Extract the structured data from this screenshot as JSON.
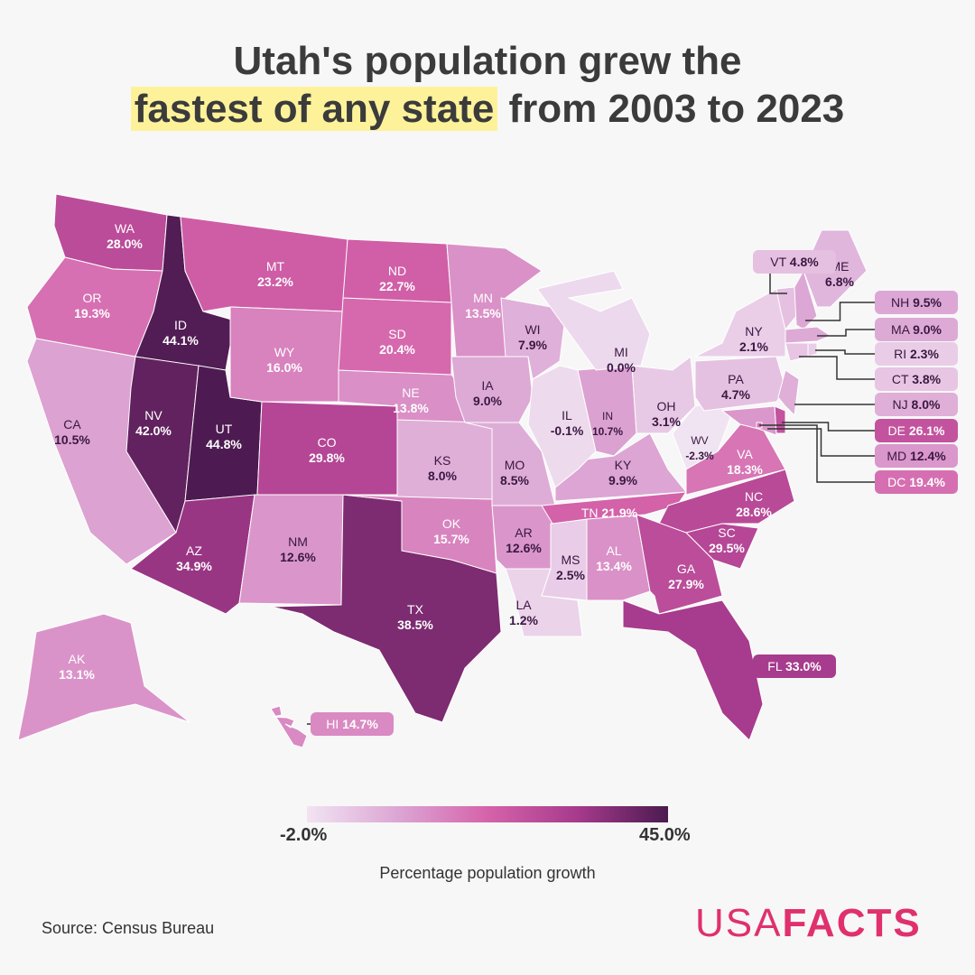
{
  "title": {
    "line1": "Utah's population grew the",
    "line2_highlight": "fastest of any state",
    "line2_rest": "from 2003 to 2023"
  },
  "legend": {
    "min_label": "-2.0%",
    "max_label": "45.0%",
    "title": "Percentage population growth",
    "min": -2.0,
    "max": 45.0,
    "colors": [
      "#f1e4f2",
      "#dca6d4",
      "#d563aa",
      "#a63a8c",
      "#4b1a50"
    ]
  },
  "source": "Source: Census Bureau",
  "logo": {
    "part1": "USA",
    "part2": "FACTS",
    "color": "#e0306e"
  },
  "states": [
    {
      "code": "WA",
      "value": 28.0
    },
    {
      "code": "OR",
      "value": 19.3
    },
    {
      "code": "CA",
      "value": 10.5
    },
    {
      "code": "ID",
      "value": 44.1
    },
    {
      "code": "NV",
      "value": 42.0
    },
    {
      "code": "UT",
      "value": 44.8
    },
    {
      "code": "AZ",
      "value": 34.9
    },
    {
      "code": "MT",
      "value": 23.2
    },
    {
      "code": "WY",
      "value": 16.0
    },
    {
      "code": "CO",
      "value": 29.8
    },
    {
      "code": "NM",
      "value": 12.6
    },
    {
      "code": "TX",
      "value": 38.5
    },
    {
      "code": "OK",
      "value": 15.7
    },
    {
      "code": "KS",
      "value": 8.0
    },
    {
      "code": "NE",
      "value": 13.8
    },
    {
      "code": "SD",
      "value": 20.4
    },
    {
      "code": "ND",
      "value": 22.7
    },
    {
      "code": "MN",
      "value": 13.5
    },
    {
      "code": "IA",
      "value": 9.0
    },
    {
      "code": "MO",
      "value": 8.5
    },
    {
      "code": "AR",
      "value": 12.6
    },
    {
      "code": "LA",
      "value": 1.2
    },
    {
      "code": "MS",
      "value": 2.5
    },
    {
      "code": "AL",
      "value": 13.4
    },
    {
      "code": "TN",
      "value": 21.9
    },
    {
      "code": "KY",
      "value": 9.9
    },
    {
      "code": "WI",
      "value": 7.9
    },
    {
      "code": "IL",
      "value": -0.1
    },
    {
      "code": "IN",
      "value": 10.7
    },
    {
      "code": "MI",
      "value": 0.0
    },
    {
      "code": "OH",
      "value": 3.1
    },
    {
      "code": "WV",
      "value": -2.3
    },
    {
      "code": "VA",
      "value": 18.3
    },
    {
      "code": "NC",
      "value": 28.6
    },
    {
      "code": "SC",
      "value": 29.5
    },
    {
      "code": "GA",
      "value": 27.9
    },
    {
      "code": "FL",
      "value": 33.0
    },
    {
      "code": "PA",
      "value": 4.7
    },
    {
      "code": "NY",
      "value": 2.1
    },
    {
      "code": "VT",
      "value": 4.8
    },
    {
      "code": "NH",
      "value": 9.5
    },
    {
      "code": "ME",
      "value": 6.8
    },
    {
      "code": "MA",
      "value": 9.0
    },
    {
      "code": "CT",
      "value": 3.8
    },
    {
      "code": "RI",
      "value": 2.3
    },
    {
      "code": "NJ",
      "value": 8.0
    },
    {
      "code": "DE",
      "value": 26.1
    },
    {
      "code": "MD",
      "value": 12.4
    },
    {
      "code": "DC",
      "value": 19.4
    },
    {
      "code": "AK",
      "value": 13.1
    },
    {
      "code": "HI",
      "value": 14.7
    }
  ]
}
